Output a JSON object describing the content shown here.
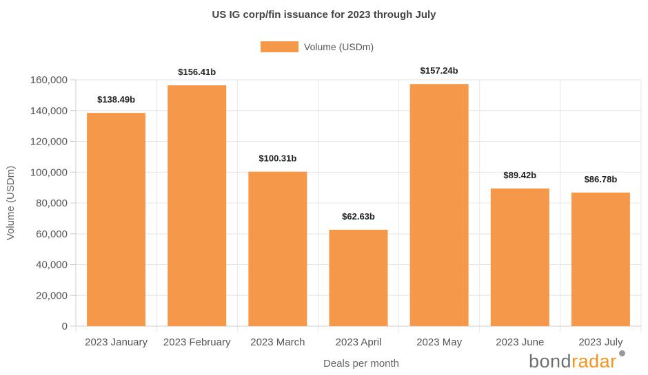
{
  "chart_data": {
    "type": "bar",
    "title": "US IG corp/fin issuance for 2023 through July",
    "xlabel": "Deals per month",
    "ylabel": "Volume (USDm)",
    "categories": [
      "2023 January",
      "2023 February",
      "2023 March",
      "2023 April",
      "2023 May",
      "2023 June",
      "2023 July"
    ],
    "series": [
      {
        "name": "Volume (USDm)",
        "values": [
          138490,
          156410,
          100310,
          62630,
          157240,
          89420,
          86780
        ],
        "labels": [
          "$138.49b",
          "$156.41b",
          "$100.31b",
          "$62.63b",
          "$157.24b",
          "$89.42b",
          "$86.78b"
        ],
        "color": "#f6984a"
      }
    ],
    "ylim": [
      0,
      160000
    ],
    "yticks": [
      0,
      20000,
      40000,
      60000,
      80000,
      100000,
      120000,
      140000,
      160000
    ],
    "ytick_labels": [
      "0",
      "20,000",
      "40,000",
      "60,000",
      "80,000",
      "100,000",
      "120,000",
      "140,000",
      "160,000"
    ],
    "grid": true,
    "legend": "top"
  },
  "brand": {
    "part1": "bond",
    "part2": "radar",
    "color1": "#6d6e71",
    "color2": "#f7941d"
  }
}
